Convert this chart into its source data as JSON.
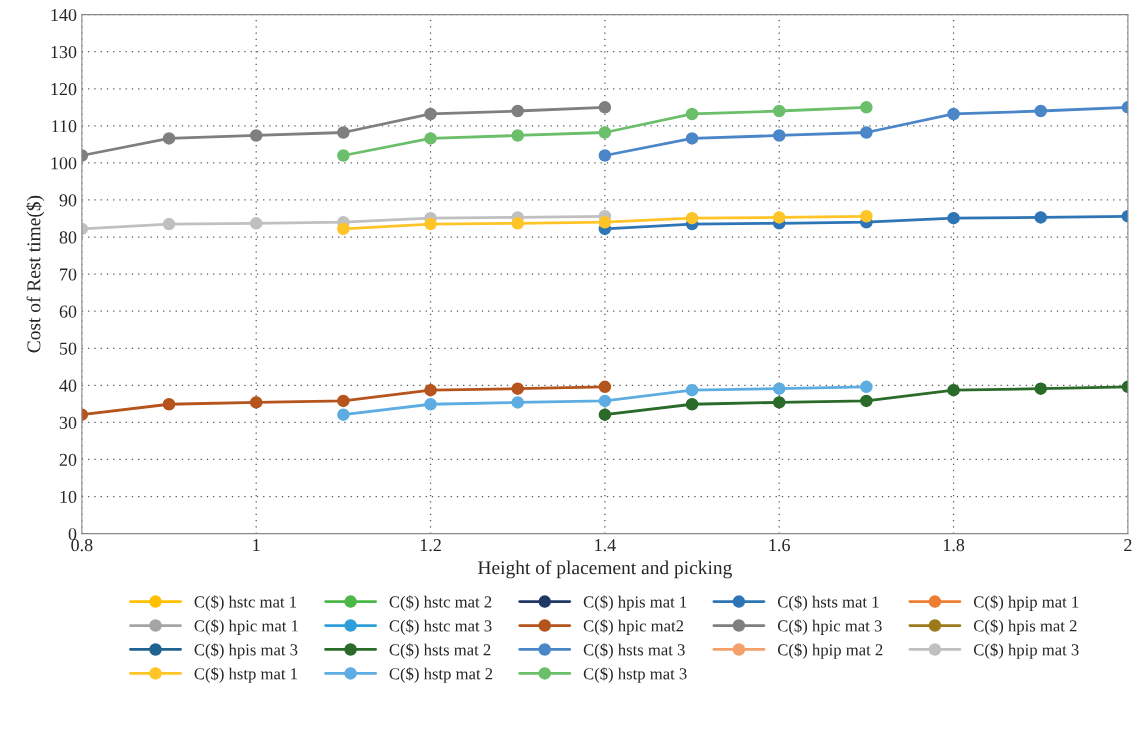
{
  "chart_data": {
    "type": "line",
    "xlabel": "Height of placement and picking",
    "ylabel": "Cost of Rest time($)",
    "x": [
      0.8,
      0.9,
      1.0,
      1.1,
      1.2,
      1.3,
      1.4,
      1.5,
      1.6,
      1.7,
      1.8,
      1.9,
      2.0
    ],
    "xlim": [
      0.8,
      2.0
    ],
    "xticks": [
      0.8,
      1,
      1.2,
      1.4,
      1.6,
      1.8,
      2
    ],
    "ylim": [
      0,
      140
    ],
    "yticks": [
      0,
      10,
      20,
      30,
      40,
      50,
      60,
      70,
      80,
      90,
      100,
      110,
      120,
      130,
      140
    ],
    "grid": true,
    "legend": "bottom",
    "marker": "circle",
    "line_style": "solid",
    "series": [
      {
        "name": "C($) hstc mat 1",
        "color": "#ffc000",
        "values": [
          null,
          null,
          null,
          null,
          null,
          null,
          null,
          null,
          null,
          null,
          null,
          null,
          null
        ]
      },
      {
        "name": "C($) hstc mat 2",
        "color": "#4cb848",
        "values": [
          null,
          null,
          null,
          null,
          null,
          null,
          null,
          null,
          null,
          null,
          null,
          null,
          null
        ]
      },
      {
        "name": "C($) hpis mat 1",
        "color": "#1f3864",
        "values": [
          null,
          null,
          null,
          null,
          null,
          null,
          null,
          null,
          null,
          null,
          null,
          null,
          null
        ]
      },
      {
        "name": "C($) hsts mat 1",
        "color": "#2e75b6",
        "values": [
          null,
          null,
          null,
          null,
          null,
          null,
          82.2,
          83.5,
          83.7,
          84,
          85.1,
          85.3,
          85.6
        ]
      },
      {
        "name": "C($) hpip mat 1",
        "color": "#ed7d31",
        "values": [
          null,
          null,
          null,
          null,
          null,
          null,
          null,
          null,
          null,
          null,
          null,
          null,
          null
        ]
      },
      {
        "name": "C($) hpic mat 1",
        "color": "#a5a5a5",
        "values": [
          null,
          null,
          null,
          null,
          null,
          null,
          null,
          null,
          null,
          null,
          null,
          null,
          null
        ]
      },
      {
        "name": "C($) hstc mat 3",
        "color": "#2e9fd8",
        "values": [
          null,
          null,
          null,
          null,
          null,
          null,
          null,
          null,
          null,
          null,
          null,
          null,
          null
        ]
      },
      {
        "name": "C($) hpic mat2",
        "color": "#b5541c",
        "values": [
          32.1,
          34.9,
          35.4,
          35.8,
          38.7,
          39.1,
          39.6,
          null,
          null,
          null,
          null,
          null,
          null
        ]
      },
      {
        "name": "C($) hpic mat 3",
        "color": "#7f7f7f",
        "values": [
          102,
          106.6,
          107.4,
          108.2,
          113.2,
          114,
          115,
          null,
          null,
          null,
          null,
          null,
          null
        ]
      },
      {
        "name": "C($) hpis mat 2",
        "color": "#9c7a1a",
        "values": [
          null,
          null,
          null,
          null,
          null,
          null,
          null,
          null,
          null,
          null,
          null,
          null,
          null
        ]
      },
      {
        "name": "C($) hpis mat 3",
        "color": "#1f6391",
        "values": [
          null,
          null,
          null,
          null,
          null,
          null,
          null,
          null,
          null,
          null,
          null,
          null,
          null
        ]
      },
      {
        "name": "C($) hsts mat 2",
        "color": "#2a6b2a",
        "values": [
          null,
          null,
          null,
          null,
          null,
          null,
          32.1,
          34.9,
          35.4,
          35.8,
          38.7,
          39.1,
          39.6
        ]
      },
      {
        "name": "C($) hsts mat 3",
        "color": "#4a86c8",
        "values": [
          null,
          null,
          null,
          null,
          null,
          null,
          102,
          106.6,
          107.4,
          108.2,
          113.2,
          114,
          115
        ]
      },
      {
        "name": "C($) hpip mat 2",
        "color": "#f4a06a",
        "values": [
          null,
          null,
          null,
          null,
          null,
          null,
          null,
          null,
          null,
          null,
          null,
          null,
          null
        ]
      },
      {
        "name": "C($) hpip mat 3",
        "color": "#c0c0c0",
        "values": [
          82.2,
          83.5,
          83.7,
          84,
          85.1,
          85.3,
          85.6,
          null,
          null,
          null,
          null,
          null,
          null
        ]
      },
      {
        "name": "C($) hstp mat 1",
        "color": "#ffc427",
        "values": [
          null,
          null,
          null,
          82.2,
          83.5,
          83.7,
          84,
          85.1,
          85.3,
          85.6,
          null,
          null,
          null
        ]
      },
      {
        "name": "C($) hstp mat 2",
        "color": "#5dade2",
        "values": [
          null,
          null,
          null,
          32.1,
          34.9,
          35.4,
          35.8,
          38.7,
          39.1,
          39.6,
          null,
          null,
          null
        ]
      },
      {
        "name": "C($) hstp mat 3",
        "color": "#6cbf6a",
        "values": [
          null,
          null,
          null,
          102,
          106.6,
          107.4,
          108.2,
          113.2,
          114,
          115,
          null,
          null,
          null
        ]
      }
    ]
  }
}
